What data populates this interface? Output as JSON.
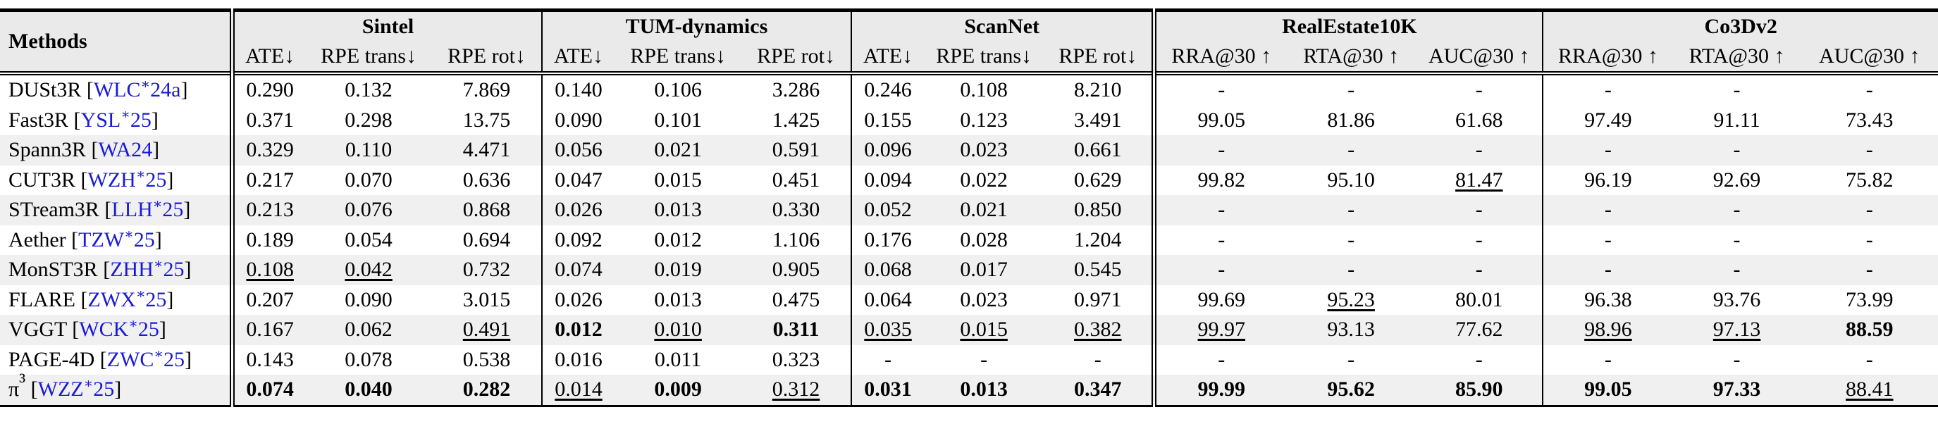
{
  "table": {
    "header": {
      "methods": "Methods",
      "groups": [
        {
          "name": "Sintel",
          "columns": [
            "ATE↓",
            "RPE trans↓",
            "RPE rot↓"
          ]
        },
        {
          "name": "TUM-dynamics",
          "columns": [
            "ATE↓",
            "RPE trans↓",
            "RPE rot↓"
          ]
        },
        {
          "name": "ScanNet",
          "columns": [
            "ATE↓",
            "RPE trans↓",
            "RPE rot↓"
          ]
        },
        {
          "name": "RealEstate10K",
          "columns": [
            "RRA@30 ↑",
            "RTA@30 ↑",
            "AUC@30 ↑"
          ]
        },
        {
          "name": "Co3Dv2",
          "columns": [
            "RRA@30 ↑",
            "RTA@30 ↑",
            "AUC@30 ↑"
          ]
        }
      ]
    },
    "rows": [
      {
        "method": "DUSt3R",
        "cite": "[WLC∗24a]",
        "cells": [
          "0.290",
          "0.132",
          "7.869",
          "0.140",
          "0.106",
          "3.286",
          "0.246",
          "0.108",
          "8.210",
          "-",
          "-",
          "-",
          "-",
          "-",
          "-"
        ]
      },
      {
        "method": "Fast3R",
        "cite": "[YSL∗25]",
        "cells": [
          "0.371",
          "0.298",
          "13.75",
          "0.090",
          "0.101",
          "1.425",
          "0.155",
          "0.123",
          "3.491",
          "99.05",
          "81.86",
          "61.68",
          "97.49",
          "91.11",
          "73.43"
        ]
      },
      {
        "method": "Spann3R",
        "cite": "[WA24]",
        "cells": [
          "0.329",
          "0.110",
          "4.471",
          "0.056",
          "0.021",
          "0.591",
          "0.096",
          "0.023",
          "0.661",
          "-",
          "-",
          "-",
          "-",
          "-",
          "-"
        ]
      },
      {
        "method": "CUT3R",
        "cite": "[WZH∗25]",
        "cells": [
          "0.217",
          "0.070",
          "0.636",
          "0.047",
          "0.015",
          "0.451",
          "0.094",
          "0.022",
          "0.629",
          "99.82",
          "95.10",
          "81.47",
          "96.19",
          "92.69",
          "75.82"
        ]
      },
      {
        "method": "STream3R",
        "cite": "[LLH∗25]",
        "cells": [
          "0.213",
          "0.076",
          "0.868",
          "0.026",
          "0.013",
          "0.330",
          "0.052",
          "0.021",
          "0.850",
          "-",
          "-",
          "-",
          "-",
          "-",
          "-"
        ]
      },
      {
        "method": "Aether",
        "cite": "[TZW∗25]",
        "cells": [
          "0.189",
          "0.054",
          "0.694",
          "0.092",
          "0.012",
          "1.106",
          "0.176",
          "0.028",
          "1.204",
          "-",
          "-",
          "-",
          "-",
          "-",
          "-"
        ]
      },
      {
        "method": "MonST3R",
        "cite": "[ZHH∗25]",
        "cells": [
          "0.108",
          "0.042",
          "0.732",
          "0.074",
          "0.019",
          "0.905",
          "0.068",
          "0.017",
          "0.545",
          "-",
          "-",
          "-",
          "-",
          "-",
          "-"
        ]
      },
      {
        "method": "FLARE",
        "cite": "[ZWX∗25]",
        "cells": [
          "0.207",
          "0.090",
          "3.015",
          "0.026",
          "0.013",
          "0.475",
          "0.064",
          "0.023",
          "0.971",
          "99.69",
          "95.23",
          "80.01",
          "96.38",
          "93.76",
          "73.99"
        ]
      },
      {
        "method": "VGGT",
        "cite": "[WCK∗25]",
        "cells": [
          "0.167",
          "0.062",
          "0.491",
          "0.012",
          "0.010",
          "0.311",
          "0.035",
          "0.015",
          "0.382",
          "99.97",
          "93.13",
          "77.62",
          "98.96",
          "97.13",
          "88.59"
        ]
      },
      {
        "method": "PAGE-4D",
        "cite": "[ZWC∗25]",
        "cells": [
          "0.143",
          "0.078",
          "0.538",
          "0.016",
          "0.011",
          "0.323",
          "-",
          "-",
          "-",
          "-",
          "-",
          "-",
          "-",
          "-",
          "-"
        ]
      },
      {
        "method": "π³",
        "cite": "[WZZ∗25]",
        "cells": [
          "0.074",
          "0.040",
          "0.282",
          "0.014",
          "0.009",
          "0.312",
          "0.031",
          "0.013",
          "0.347",
          "99.99",
          "95.62",
          "85.90",
          "99.05",
          "97.33",
          "88.41"
        ]
      }
    ]
  }
}
